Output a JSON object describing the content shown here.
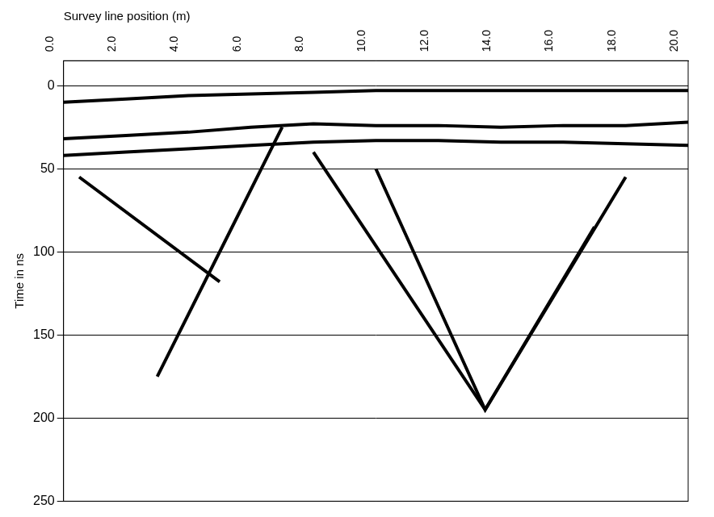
{
  "chart_data": {
    "type": "line",
    "x_label": "Survey line position (m)",
    "y_label": "Time in ns",
    "xlim": [
      0,
      20
    ],
    "xticks": [
      {
        "value": 0,
        "label": "0.0"
      },
      {
        "value": 2,
        "label": "2.0"
      },
      {
        "value": 4,
        "label": "4.0"
      },
      {
        "value": 6,
        "label": "6.0"
      },
      {
        "value": 8,
        "label": "8.0"
      },
      {
        "value": 10,
        "label": "10.0"
      },
      {
        "value": 12,
        "label": "12.0"
      },
      {
        "value": 14,
        "label": "14.0"
      },
      {
        "value": 16,
        "label": "16.0"
      },
      {
        "value": 18,
        "label": "18.0"
      },
      {
        "value": 20,
        "label": "20.0"
      }
    ],
    "ylim": [
      -15,
      250
    ],
    "yticks": [
      0,
      50,
      100,
      150,
      200,
      250
    ],
    "grid": "y",
    "series": [
      {
        "color": "#000000",
        "line_style": "solid",
        "x": [
          0,
          2,
          4,
          6,
          8,
          10,
          12,
          14,
          16,
          18,
          20
        ],
        "values": [
          10,
          8,
          6,
          5,
          4,
          3,
          3,
          3,
          3,
          3,
          3
        ]
      },
      {
        "color": "#000000",
        "line_style": "solid",
        "x": [
          0,
          2,
          4,
          6,
          8,
          10,
          12,
          14,
          16,
          18,
          20
        ],
        "values": [
          32,
          30,
          28,
          25,
          23,
          24,
          24,
          25,
          24,
          24,
          22
        ]
      },
      {
        "color": "#000000",
        "line_style": "solid",
        "x": [
          0,
          2,
          4,
          6,
          8,
          10,
          12,
          14,
          16,
          18,
          20
        ],
        "values": [
          42,
          40,
          38,
          36,
          34,
          33,
          33,
          34,
          34,
          35,
          36
        ]
      },
      {
        "color": "#000000",
        "line_style": "solid",
        "x": [
          7,
          5,
          3
        ],
        "values": [
          25,
          100,
          175
        ]
      },
      {
        "color": "#000000",
        "line_style": "solid",
        "x": [
          0.5,
          5
        ],
        "values": [
          55,
          118
        ]
      },
      {
        "color": "#000000",
        "line_style": "solid",
        "x": [
          8,
          13.5,
          18
        ],
        "values": [
          40,
          195,
          55
        ]
      },
      {
        "color": "#000000",
        "line_style": "solid",
        "x": [
          10,
          13.5,
          17
        ],
        "values": [
          50,
          195,
          85
        ]
      }
    ]
  }
}
